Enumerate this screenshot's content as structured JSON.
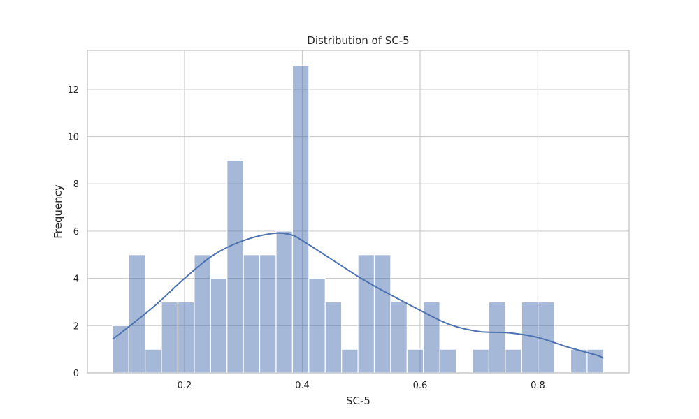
{
  "chart_data": {
    "type": "bar",
    "title": "Distribution of SC-5",
    "xlabel": "SC-5",
    "ylabel": "Frequency",
    "xlim": [
      0.035,
      0.955
    ],
    "ylim": [
      0,
      13.65
    ],
    "xticks": [
      0.2,
      0.4,
      0.6,
      0.8
    ],
    "xtick_labels": [
      "0.2",
      "0.4",
      "0.6",
      "0.8"
    ],
    "yticks": [
      0,
      2,
      4,
      6,
      8,
      10,
      12
    ],
    "ytick_labels": [
      "0",
      "2",
      "4",
      "6",
      "8",
      "10",
      "12"
    ],
    "grid": true,
    "bins": {
      "start": 0.0775,
      "width": 0.0278,
      "counts": [
        2,
        5,
        1,
        3,
        3,
        5,
        4,
        9,
        5,
        5,
        6,
        13,
        4,
        3,
        1,
        5,
        5,
        3,
        1,
        3,
        1,
        0,
        1,
        3,
        1,
        3,
        3,
        0,
        1,
        1
      ]
    },
    "kde": {
      "x": [
        0.0775,
        0.1,
        0.15,
        0.2,
        0.25,
        0.3,
        0.35,
        0.38,
        0.4,
        0.45,
        0.5,
        0.55,
        0.6,
        0.65,
        0.7,
        0.75,
        0.8,
        0.85,
        0.9,
        0.9115
      ],
      "y": [
        1.42,
        1.85,
        2.85,
        4.0,
        5.0,
        5.6,
        5.9,
        5.85,
        5.6,
        4.8,
        4.0,
        3.3,
        2.65,
        2.05,
        1.75,
        1.7,
        1.5,
        1.1,
        0.75,
        0.62
      ]
    },
    "colors": {
      "bar": "#4c72b0",
      "line": "#4c72b0",
      "grid": "#cccccc"
    }
  }
}
